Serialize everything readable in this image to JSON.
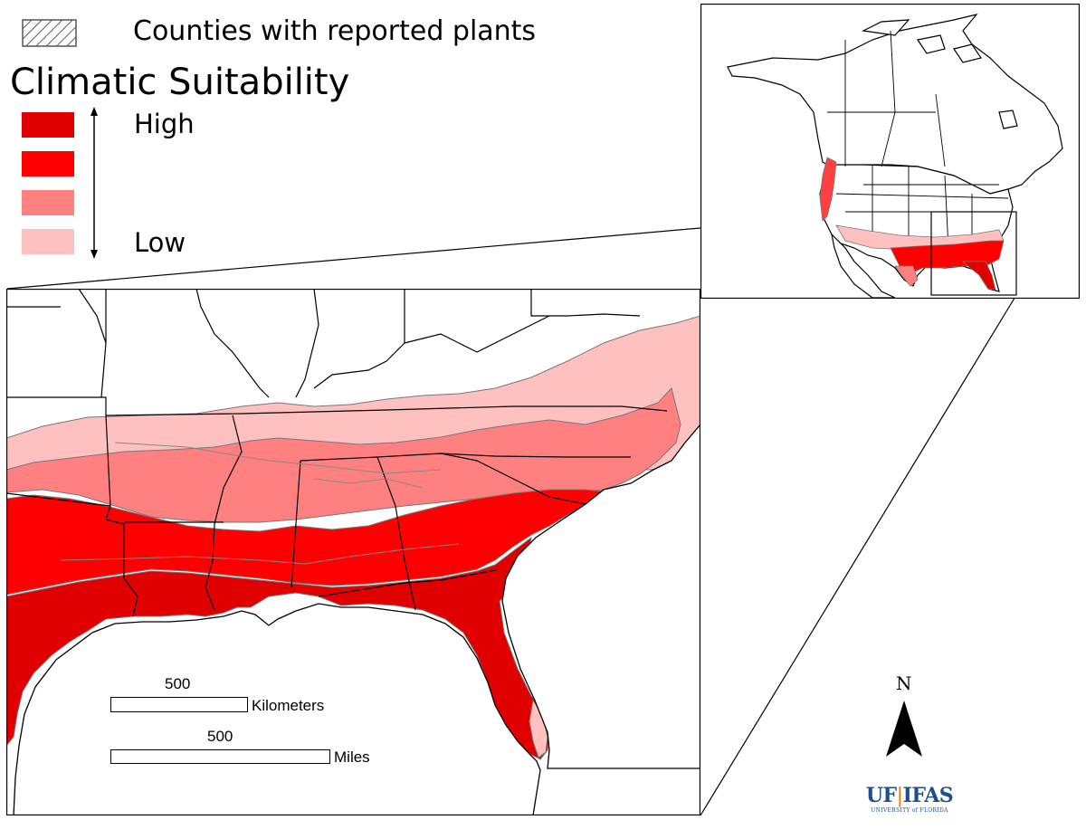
{
  "legend": {
    "counties_label": "Counties with reported plants",
    "title": "Climatic Suitability",
    "high_label": "High",
    "low_label": "Low",
    "colors": {
      "very_high": "#e00000",
      "high": "#ff0000",
      "medium": "#ff8080",
      "low": "#ffc0c0"
    }
  },
  "scale_bar": {
    "km_value": "500",
    "km_unit": "Kilometers",
    "mi_value": "500",
    "mi_unit": "Miles"
  },
  "north_arrow": {
    "label": "N"
  },
  "logo": {
    "main_left": "UF",
    "main_right": "IFAS",
    "subtitle": "UNIVERSITY of FLORIDA",
    "color": "#1f4e8c"
  }
}
